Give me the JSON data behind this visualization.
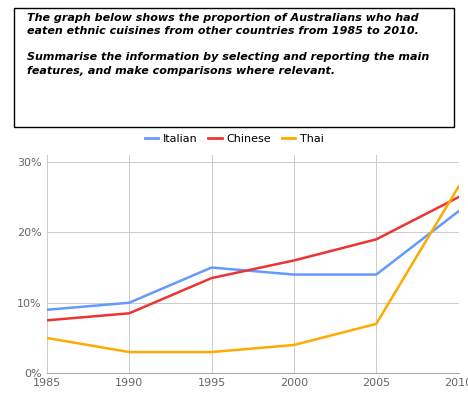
{
  "years": [
    1985,
    1990,
    1995,
    2000,
    2005,
    2010
  ],
  "italian": [
    9,
    10,
    15,
    14,
    14,
    23
  ],
  "chinese": [
    7.5,
    8.5,
    13.5,
    16,
    19,
    25
  ],
  "thai": [
    5,
    3,
    3,
    4,
    7,
    26.5
  ],
  "colors": {
    "italian": "#6699ff",
    "chinese": "#ee3333",
    "thai": "#ffaa00"
  },
  "text_box_line1": "The graph below shows the proportion of Australians who had",
  "text_box_line2": "eaten ethnic cuisines from other countries from 1985 to 2010.",
  "text_box_line3": "",
  "text_box_line4": "Summarise the information by selecting and reporting the main",
  "text_box_line5": "features, and make comparisons where relevant.",
  "ylim": [
    0,
    31
  ],
  "yticks": [
    0,
    10,
    20,
    30
  ],
  "ytick_labels": [
    "0%",
    "10%",
    "20%",
    "30%"
  ],
  "xticks": [
    1985,
    1990,
    1995,
    2000,
    2005,
    2010
  ],
  "legend_labels": [
    "Italian",
    "Chinese",
    "Thai"
  ],
  "background_color": "#ffffff",
  "grid_color": "#cccccc",
  "text_fontsize": 8.0,
  "tick_fontsize": 8.0
}
